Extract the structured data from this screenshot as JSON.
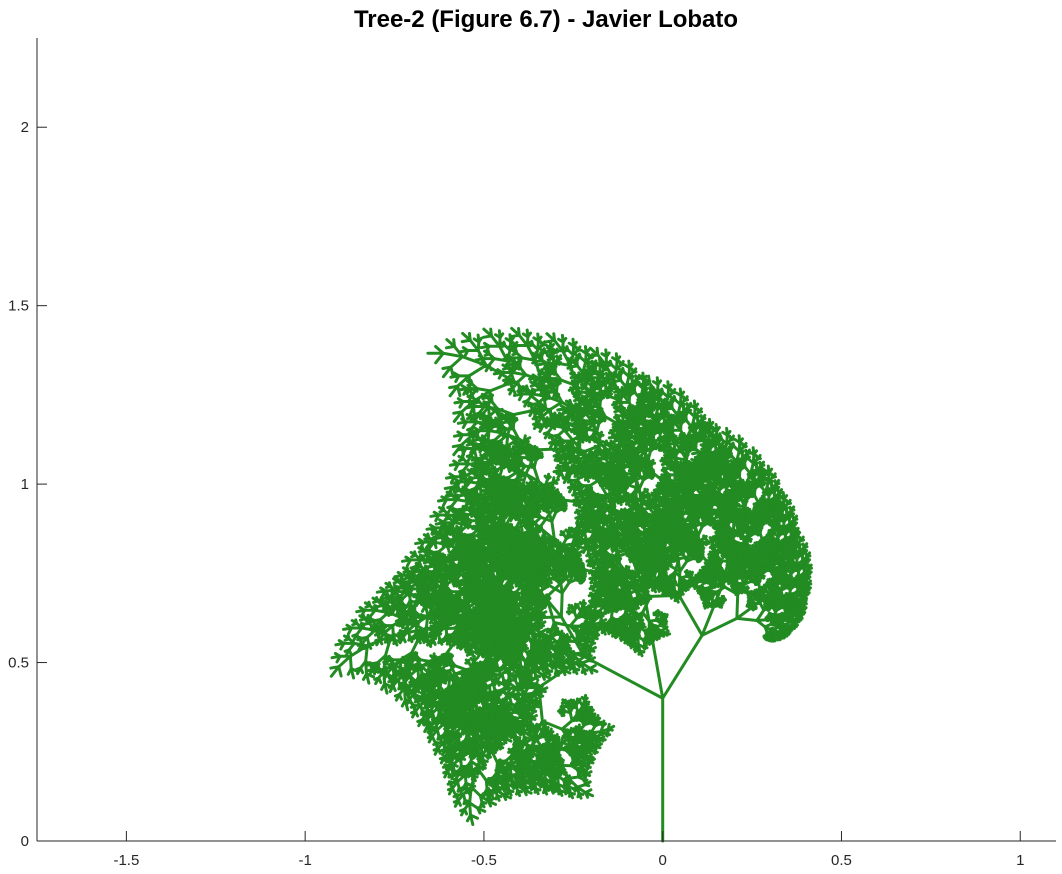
{
  "chart_data": {
    "type": "line",
    "title": "Tree-2 (Figure 6.7) - Javier Lobato",
    "xlabel": "",
    "ylabel": "",
    "xlim": [
      -1.75,
      1.1
    ],
    "ylim": [
      0,
      2.25
    ],
    "x_ticks": [
      -1.5,
      -1,
      -0.5,
      0,
      0.5,
      1
    ],
    "x_tick_labels": [
      "-1.5",
      "-1",
      "-0.5",
      "0",
      "0.5",
      "1"
    ],
    "y_ticks": [
      0,
      0.5,
      1,
      1.5,
      2
    ],
    "y_tick_labels": [
      "0",
      "0.5",
      "1",
      "1.5",
      "2"
    ],
    "grid": false,
    "box": "left-bottom axes only",
    "line_color": "#228b22",
    "series": [
      {
        "x": [
          0,
          0
        ],
        "y": [
          0,
          0.4
        ]
      }
    ],
    "fractal": {
      "trunk": {
        "x": [
          0,
          0
        ],
        "y": [
          0,
          0.4
        ]
      },
      "rules": [
        {
          "angle_deg": 62,
          "scale": 0.62
        },
        {
          "angle_deg": -32,
          "scale": 0.52
        },
        {
          "angle_deg": 10,
          "scale": 0.78
        }
      ],
      "depth": 9
    }
  }
}
